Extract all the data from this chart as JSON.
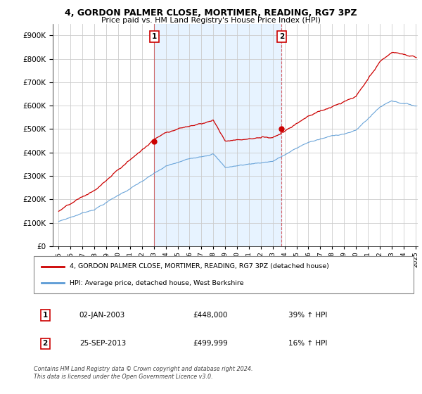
{
  "title": "4, GORDON PALMER CLOSE, MORTIMER, READING, RG7 3PZ",
  "subtitle": "Price paid vs. HM Land Registry's House Price Index (HPI)",
  "legend_line1": "4, GORDON PALMER CLOSE, MORTIMER, READING, RG7 3PZ (detached house)",
  "legend_line2": "HPI: Average price, detached house, West Berkshire",
  "annotation1_date": "02-JAN-2003",
  "annotation1_price": "£448,000",
  "annotation1_hpi": "39% ↑ HPI",
  "annotation2_date": "25-SEP-2013",
  "annotation2_price": "£499,999",
  "annotation2_hpi": "16% ↑ HPI",
  "footer1": "Contains HM Land Registry data © Crown copyright and database right 2024.",
  "footer2": "This data is licensed under the Open Government Licence v3.0.",
  "red_color": "#cc0000",
  "blue_color": "#5b9bd5",
  "shade_color": "#ddeeff",
  "background_color": "#ffffff",
  "grid_color": "#cccccc",
  "ylim": [
    0,
    950000
  ],
  "yticks": [
    0,
    100000,
    200000,
    300000,
    400000,
    500000,
    600000,
    700000,
    800000,
    900000
  ],
  "sale1_x": 2003.04,
  "sale1_y": 448000,
  "sale2_x": 2013.75,
  "sale2_y": 499999,
  "xmin": 1995.0,
  "xmax": 2025.2
}
